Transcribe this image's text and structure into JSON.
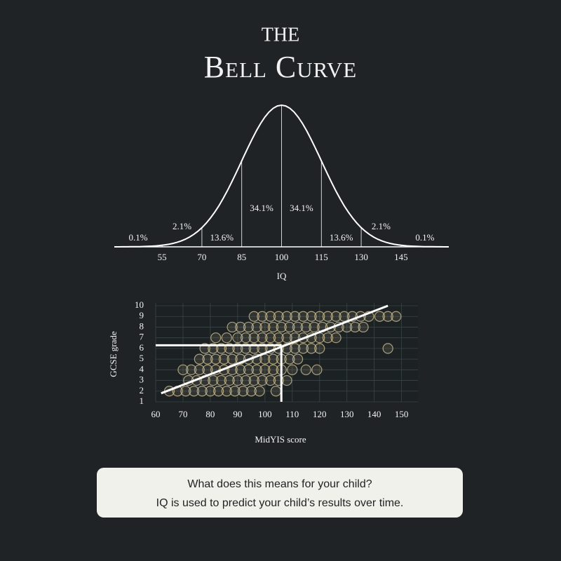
{
  "header": {
    "line1": "THE",
    "line2": "Bell Curve"
  },
  "chart_data": [
    {
      "type": "bell",
      "xlabel": "IQ",
      "categories": [
        "0.1%",
        "2.1%",
        "13.6%",
        "34.1%",
        "34.1%",
        "13.6%",
        "2.1%",
        "0.1%"
      ],
      "values": [
        0.1,
        2.1,
        13.6,
        34.1,
        34.1,
        13.6,
        2.1,
        0.1
      ],
      "xlim": [
        37,
        163
      ],
      "xticks": [
        55,
        70,
        85,
        100,
        115,
        130,
        145
      ],
      "color": "#ffffff"
    },
    {
      "type": "scatter",
      "xlabel": "MidYIS score",
      "ylabel": "GCSE grade",
      "x": [
        96,
        99,
        102,
        105,
        108,
        111,
        114,
        117,
        120,
        123,
        126,
        129,
        132,
        135,
        138,
        142,
        145,
        148,
        88,
        91,
        94,
        97,
        100,
        103,
        106,
        109,
        112,
        115,
        118,
        121,
        124,
        127,
        130,
        133,
        136,
        82,
        86,
        90,
        93,
        96,
        99,
        102,
        105,
        108,
        111,
        114,
        117,
        120,
        123,
        126,
        78,
        81,
        84,
        87,
        90,
        93,
        96,
        99,
        102,
        105,
        108,
        111,
        114,
        117,
        120,
        145,
        76,
        79,
        82,
        85,
        88,
        91,
        94,
        97,
        100,
        103,
        106,
        109,
        112,
        70,
        73,
        76,
        79,
        82,
        85,
        88,
        91,
        94,
        97,
        100,
        103,
        106,
        110,
        115,
        119,
        72,
        75,
        78,
        81,
        84,
        87,
        90,
        93,
        96,
        99,
        102,
        105,
        108,
        65,
        68,
        71,
        74,
        77,
        80,
        83,
        86,
        89,
        92,
        95,
        98,
        104
      ],
      "values": [
        9,
        9,
        9,
        9,
        9,
        9,
        9,
        9,
        9,
        9,
        9,
        9,
        9,
        9,
        9,
        9,
        9,
        9,
        8,
        8,
        8,
        8,
        8,
        8,
        8,
        8,
        8,
        8,
        8,
        8,
        8,
        8,
        8,
        8,
        8,
        7,
        7,
        7,
        7,
        7,
        7,
        7,
        7,
        7,
        7,
        7,
        7,
        7,
        7,
        7,
        6,
        6,
        6,
        6,
        6,
        6,
        6,
        6,
        6,
        6,
        6,
        6,
        6,
        6,
        6,
        6,
        5,
        5,
        5,
        5,
        5,
        5,
        5,
        5,
        5,
        5,
        5,
        5,
        5,
        4,
        4,
        4,
        4,
        4,
        4,
        4,
        4,
        4,
        4,
        4,
        4,
        4,
        4,
        4,
        4,
        3,
        3,
        3,
        3,
        3,
        3,
        3,
        3,
        3,
        3,
        3,
        3,
        3,
        2,
        2,
        2,
        2,
        2,
        2,
        2,
        2,
        2,
        2,
        2,
        2,
        2
      ],
      "color": "#cbbd92",
      "trendline": {
        "x": [
          62,
          145
        ],
        "y": [
          1.8,
          10
        ]
      },
      "threshold": {
        "x": 106,
        "y": 6.3
      },
      "xlim": [
        60,
        156
      ],
      "xticks": [
        60,
        70,
        80,
        90,
        100,
        110,
        120,
        130,
        140,
        150
      ],
      "ylim": [
        1,
        10
      ],
      "yticks": [
        1,
        2,
        3,
        4,
        5,
        6,
        7,
        8,
        9,
        10
      ],
      "grid": true
    }
  ],
  "footer": {
    "lines": [
      "What does this means for your child?",
      "IQ is used to predict your child’s results over time."
    ]
  }
}
